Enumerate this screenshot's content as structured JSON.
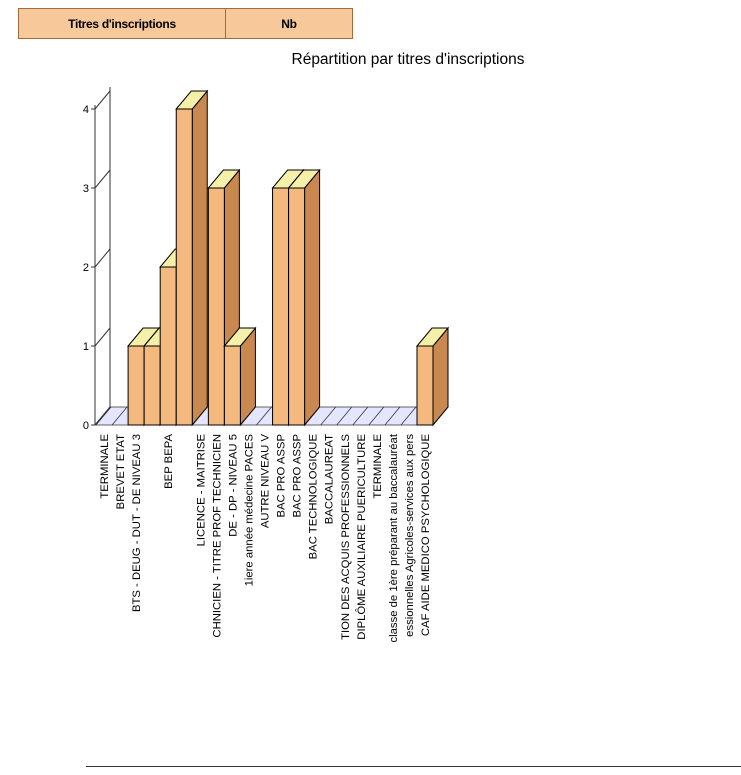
{
  "table_header": {
    "col1": "Titres d'inscriptions",
    "col2": "Nb"
  },
  "colors": {
    "header_fill": "#f7c99a",
    "bar_front": "#f4b97e",
    "bar_top": "#f5f0a8",
    "bar_side": "#c8884f",
    "floor": "#e4e6ff"
  },
  "chart_data": {
    "type": "bar",
    "title": "Répartition par titres d'inscriptions",
    "xlabel": "",
    "ylabel": "",
    "ylim": [
      0,
      4
    ],
    "yticks": [
      0,
      1,
      2,
      3,
      4
    ],
    "grid": false,
    "legend": "none",
    "categories": [
      "TERMINALE",
      "BREVET ETAT",
      "BTS - DEUG - DUT - DE NIVEAU 3",
      "",
      "BEP BEPA",
      "",
      "LICENCE - MAITRISE",
      "CHNICIEN - TITRE PROF TECHNICIEN",
      "DE - DP - NIVEAU 5",
      "1iere année médecine PACES",
      "AUTRE NIVEAU V",
      "BAC PRO ASSP",
      "BAC PRO ASSP",
      "BAC TECHNOLOGIQUE",
      "BACCALAUREAT",
      "TION DES ACQUIS PROFESSIONNELS",
      "DIPLÔME AUXILIAIRE PUERICULTURE",
      "TERMINALE",
      "classe de 1ère préparant au baccalauréat",
      "essionnelles Agricoles-services aux pers",
      "CAF AIDE MEDICO PSYCHOLOGIQUE"
    ],
    "values": [
      0,
      0,
      1,
      1,
      2,
      4,
      0,
      3,
      1,
      0,
      0,
      3,
      3,
      0,
      0,
      0,
      0,
      0,
      0,
      0,
      1
    ]
  }
}
